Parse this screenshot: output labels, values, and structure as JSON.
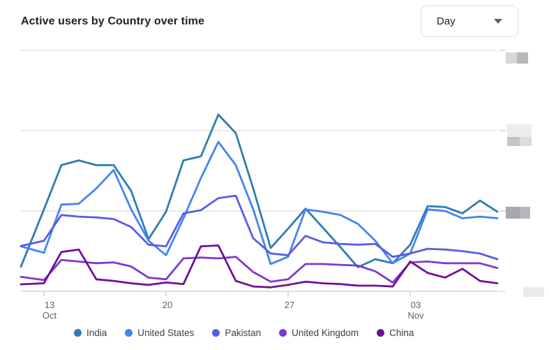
{
  "header": {
    "title": "Active users by Country over time",
    "interval_selector": {
      "value": "Day"
    }
  },
  "legend_items": [
    {
      "label": "India",
      "color": "#2f7cb0"
    },
    {
      "label": "United States",
      "color": "#4384f3"
    },
    {
      "label": "Pakistan",
      "color": "#5a5be8"
    },
    {
      "label": "United Kingdom",
      "color": "#8038cf"
    },
    {
      "label": "China",
      "color": "#70109a"
    }
  ],
  "chart_data": {
    "type": "line",
    "title": "Active users by Country over time",
    "xlabel": "",
    "ylabel": "",
    "x": [
      "Oct 12",
      "Oct 13",
      "Oct 14",
      "Oct 15",
      "Oct 16",
      "Oct 17",
      "Oct 18",
      "Oct 19",
      "Oct 20",
      "Oct 21",
      "Oct 22",
      "Oct 23",
      "Oct 24",
      "Oct 25",
      "Oct 26",
      "Oct 27",
      "Oct 28",
      "Oct 29",
      "Oct 30",
      "Oct 31",
      "Nov 1",
      "Nov 2",
      "Nov 3",
      "Nov 4",
      "Nov 5",
      "Nov 6",
      "Nov 7",
      "Nov 8"
    ],
    "x_ticks": [
      {
        "index": 1,
        "top": "13",
        "bottom": "Oct"
      },
      {
        "index": 8,
        "top": "20",
        "bottom": ""
      },
      {
        "index": 15,
        "top": "27",
        "bottom": ""
      },
      {
        "index": 22,
        "top": "03",
        "bottom": "Nov"
      }
    ],
    "y_axis": {
      "labels_redacted": true,
      "gridline_levels": [
        1,
        2,
        3
      ],
      "ylim": [
        0,
        3.1
      ],
      "units": "relative gridline units (numeric tick labels are blurred out in source image)"
    },
    "grid": true,
    "legend_position": "bottom",
    "series": [
      {
        "name": "India",
        "color": "#2f7cb0",
        "values": [
          0.48,
          1.02,
          1.57,
          1.63,
          1.57,
          1.57,
          1.25,
          0.65,
          0.99,
          1.63,
          1.68,
          2.2,
          1.97,
          1.28,
          0.54,
          0.78,
          1.03,
          0.79,
          0.55,
          0.3,
          0.4,
          0.35,
          0.58,
          1.06,
          1.05,
          0.97,
          1.13,
          0.99
        ]
      },
      {
        "name": "United States",
        "color": "#4384f3",
        "values": [
          0.54,
          0.48,
          1.08,
          1.09,
          1.28,
          1.51,
          1.02,
          0.63,
          0.45,
          0.91,
          1.41,
          1.86,
          1.57,
          1.02,
          0.34,
          0.43,
          1.02,
          0.99,
          0.95,
          0.84,
          0.63,
          0.35,
          0.47,
          1.02,
          1.0,
          0.91,
          0.93,
          0.91
        ]
      },
      {
        "name": "Pakistan",
        "color": "#5a5be8",
        "values": [
          0.58,
          0.63,
          0.95,
          0.93,
          0.92,
          0.9,
          0.8,
          0.58,
          0.56,
          0.97,
          1.01,
          1.16,
          1.19,
          0.66,
          0.47,
          0.45,
          0.69,
          0.61,
          0.59,
          0.58,
          0.59,
          0.43,
          0.47,
          0.53,
          0.52,
          0.5,
          0.47,
          0.4
        ]
      },
      {
        "name": "United Kingdom",
        "color": "#8038cf",
        "values": [
          0.17,
          0.14,
          0.39,
          0.37,
          0.35,
          0.36,
          0.31,
          0.17,
          0.15,
          0.41,
          0.42,
          0.41,
          0.43,
          0.24,
          0.12,
          0.15,
          0.34,
          0.34,
          0.33,
          0.32,
          0.25,
          0.11,
          0.36,
          0.37,
          0.35,
          0.35,
          0.35,
          0.29
        ]
      },
      {
        "name": "China",
        "color": "#70109a",
        "values": [
          0.09,
          0.1,
          0.49,
          0.52,
          0.15,
          0.13,
          0.1,
          0.08,
          0.11,
          0.09,
          0.56,
          0.57,
          0.13,
          0.06,
          0.05,
          0.08,
          0.12,
          0.1,
          0.09,
          0.07,
          0.07,
          0.06,
          0.37,
          0.23,
          0.17,
          0.28,
          0.13,
          0.1
        ]
      }
    ]
  }
}
